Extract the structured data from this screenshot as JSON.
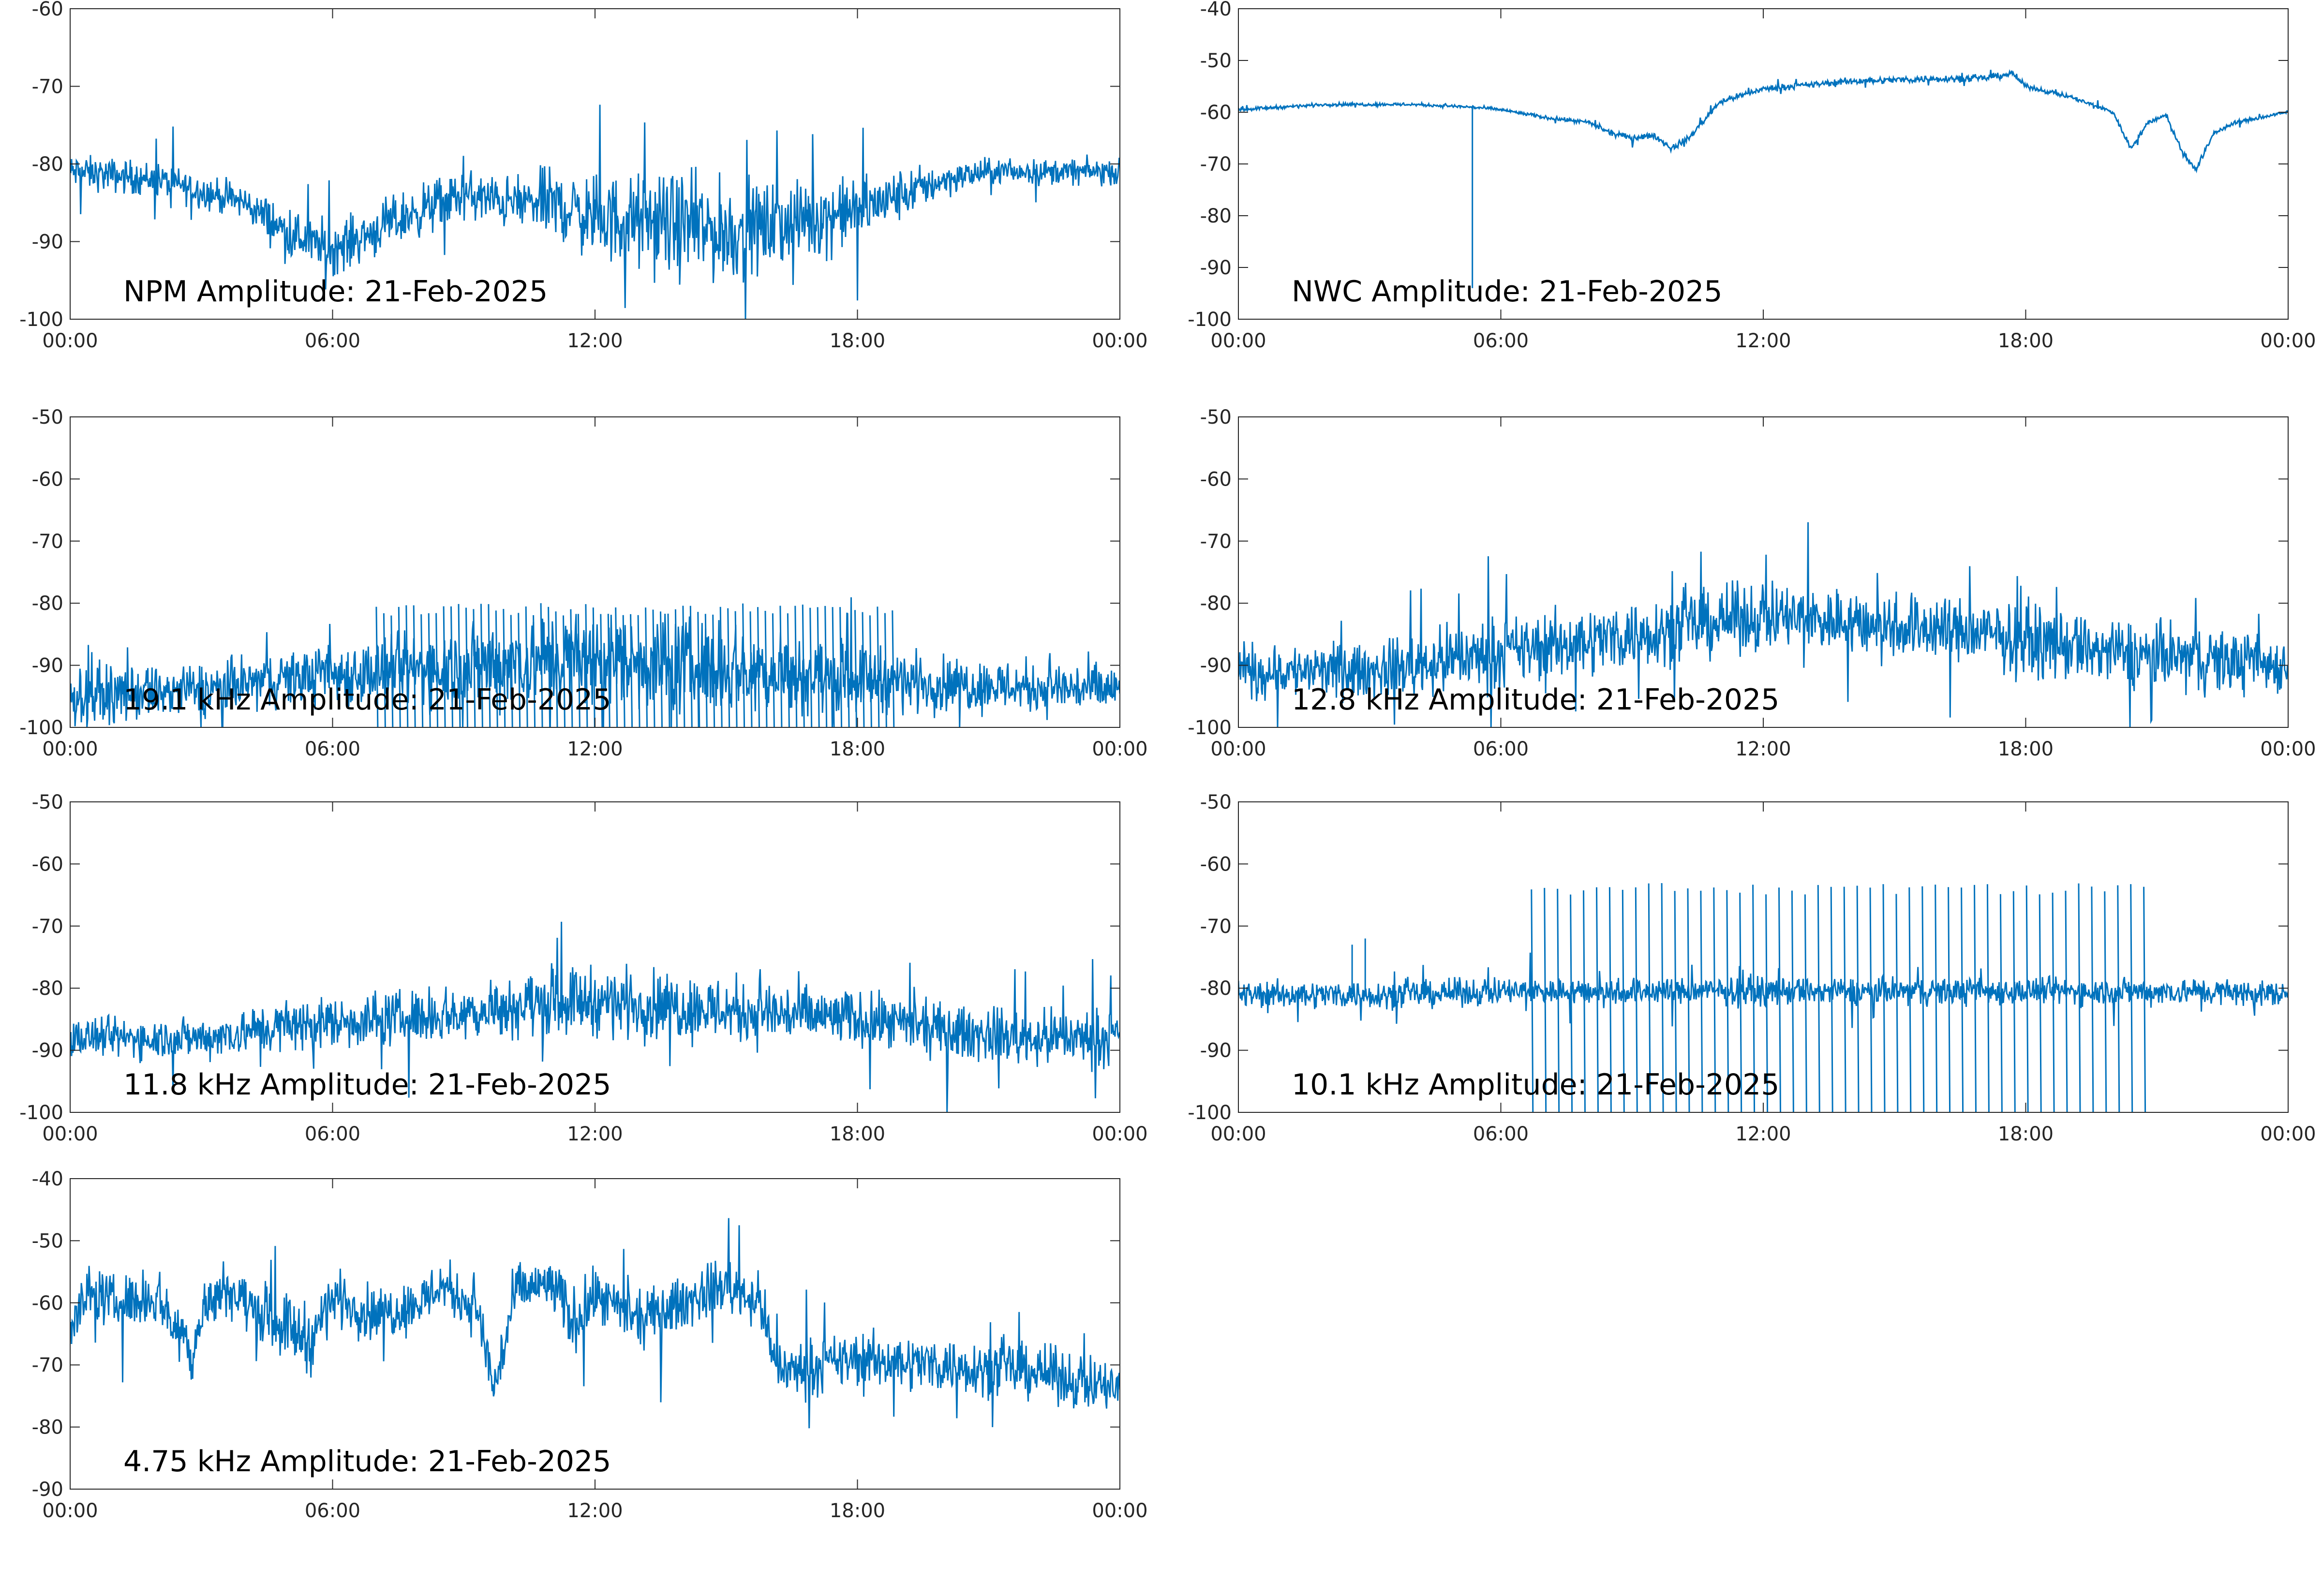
{
  "figure": {
    "background": "#ffffff",
    "line_color": "#0072BD",
    "axis_color": "#262626"
  },
  "chart_data": [
    {
      "type": "line",
      "title": "NPM Amplitude: 21-Feb-2025",
      "x_tick_labels": [
        "00:00",
        "06:00",
        "12:00",
        "18:00",
        "00:00"
      ],
      "ylim": [
        -100,
        -60
      ],
      "y_ticks": [
        -100,
        -90,
        -80,
        -70,
        -60
      ],
      "grid": false,
      "series": [
        {
          "x_hours": [
            0,
            2,
            4,
            5,
            6,
            8,
            9,
            10,
            11,
            12,
            14,
            15,
            16,
            18,
            19,
            20,
            21,
            24
          ],
          "y_mean": [
            -81,
            -82,
            -85,
            -89,
            -91,
            -86,
            -84,
            -85,
            -85,
            -87,
            -88,
            -89,
            -88,
            -86,
            -84,
            -82,
            -81,
            -81
          ],
          "y_spread": [
            2,
            2,
            2,
            3,
            3,
            3,
            3,
            3,
            4,
            5,
            6,
            6,
            5,
            4,
            3,
            2,
            1.5,
            1.5
          ]
        }
      ]
    },
    {
      "type": "line",
      "title": "NWC Amplitude: 21-Feb-2025",
      "x_tick_labels": [
        "00:00",
        "06:00",
        "12:00",
        "18:00",
        "00:00"
      ],
      "ylim": [
        -100,
        -40
      ],
      "y_ticks": [
        -100,
        -90,
        -80,
        -70,
        -60,
        -50,
        -40
      ],
      "grid": false,
      "series": [
        {
          "x_hours": [
            0,
            2,
            4,
            5.3,
            6,
            7,
            8,
            8.5,
            9,
            9.5,
            9.9,
            10.3,
            11,
            12,
            14,
            16,
            17,
            17.7,
            18,
            19,
            20,
            20.4,
            20.8,
            21.2,
            21.6,
            21.9,
            22.3,
            22.8,
            24
          ],
          "y_mean": [
            -59.5,
            -58.5,
            -58.5,
            -59,
            -59.5,
            -61,
            -62,
            -64,
            -65,
            -64.5,
            -67,
            -65,
            -58,
            -55.5,
            -54,
            -53.5,
            -53.5,
            -52.5,
            -55,
            -57,
            -60,
            -67,
            -62,
            -60.5,
            -68,
            -71,
            -64,
            -62,
            -60
          ],
          "y_spread": [
            0.3,
            0.3,
            0.3,
            0.3,
            0.3,
            0.3,
            0.4,
            0.5,
            0.5,
            0.5,
            0.6,
            0.5,
            0.5,
            0.5,
            0.6,
            0.6,
            0.6,
            0.6,
            0.4,
            0.4,
            0.4,
            0.6,
            0.4,
            0.4,
            0.6,
            0.6,
            0.4,
            0.4,
            0.3
          ],
          "spikes": [
            {
              "x_hours": 5.35,
              "y": -94
            }
          ]
        }
      ]
    },
    {
      "type": "line",
      "title": "19.1 kHz Amplitude: 21-Feb-2025",
      "x_tick_labels": [
        "00:00",
        "06:00",
        "12:00",
        "18:00",
        "00:00"
      ],
      "ylim": [
        -100,
        -50
      ],
      "y_ticks": [
        -100,
        -90,
        -80,
        -70,
        -60,
        -50
      ],
      "grid": false,
      "series": [
        {
          "x_hours": [
            0,
            3,
            5,
            7,
            9,
            11,
            12,
            14,
            16,
            18,
            20,
            24
          ],
          "y_mean": [
            -95,
            -94,
            -92,
            -91,
            -90,
            -89,
            -89,
            -90,
            -91,
            -92,
            -93,
            -94
          ],
          "y_spread": [
            4,
            4,
            4,
            5,
            6,
            7,
            7,
            7,
            6,
            5,
            4,
            4
          ],
          "bursts": {
            "x_start_hours": 7,
            "x_end_hours": 18.8,
            "count": 70,
            "y_top": -80,
            "y_bottom": -100
          }
        }
      ]
    },
    {
      "type": "line",
      "title": "12.8 kHz Amplitude: 21-Feb-2025",
      "x_tick_labels": [
        "00:00",
        "06:00",
        "12:00",
        "18:00",
        "00:00"
      ],
      "ylim": [
        -100,
        -50
      ],
      "y_ticks": [
        -100,
        -90,
        -80,
        -70,
        -60,
        -50
      ],
      "grid": false,
      "series": [
        {
          "x_hours": [
            0,
            3,
            5,
            7,
            9,
            11,
            12,
            14,
            16,
            18,
            20,
            22,
            24
          ],
          "y_mean": [
            -91,
            -91,
            -89,
            -87,
            -85,
            -83,
            -82,
            -83,
            -84,
            -86,
            -88,
            -89,
            -90
          ],
          "y_spread": [
            4,
            4,
            5,
            5,
            5,
            5,
            5,
            5,
            5,
            5,
            5,
            5,
            4
          ]
        }
      ]
    },
    {
      "type": "line",
      "title": "11.8 kHz Amplitude: 21-Feb-2025",
      "x_tick_labels": [
        "00:00",
        "06:00",
        "12:00",
        "18:00",
        "00:00"
      ],
      "ylim": [
        -100,
        -50
      ],
      "y_ticks": [
        -100,
        -90,
        -80,
        -70,
        -60,
        -50
      ],
      "grid": false,
      "series": [
        {
          "x_hours": [
            0,
            3,
            5,
            7,
            9,
            11,
            12,
            14,
            16,
            18,
            20,
            22,
            24
          ],
          "y_mean": [
            -88,
            -88,
            -86,
            -85,
            -84,
            -82,
            -82,
            -83,
            -84,
            -85,
            -87,
            -88,
            -88
          ],
          "y_spread": [
            3,
            3,
            4,
            4,
            4,
            5,
            5,
            5,
            5,
            4,
            4,
            4,
            4
          ]
        }
      ]
    },
    {
      "type": "line",
      "title": "10.1 kHz Amplitude: 21-Feb-2025",
      "x_tick_labels": [
        "00:00",
        "06:00",
        "12:00",
        "18:00",
        "00:00"
      ],
      "ylim": [
        -100,
        -50
      ],
      "y_ticks": [
        -100,
        -90,
        -80,
        -70,
        -60,
        -50
      ],
      "grid": false,
      "series": [
        {
          "x_hours": [
            0,
            2,
            4,
            6,
            6.7,
            12,
            18,
            20.7,
            22,
            24
          ],
          "y_mean": [
            -81,
            -81,
            -81,
            -80.5,
            -80.5,
            -80.5,
            -80.5,
            -80.5,
            -80.5,
            -81
          ],
          "y_spread": [
            2,
            2,
            2,
            2,
            2,
            2,
            2,
            2,
            2,
            2
          ],
          "bursts": {
            "x_start_hours": 6.7,
            "x_end_hours": 20.7,
            "count": 48,
            "y_top": -63,
            "y_bottom": -100
          },
          "spikes": [
            {
              "x_hours": 2.9,
              "y": -72
            },
            {
              "x_hours": 2.6,
              "y": -73
            }
          ]
        }
      ]
    },
    {
      "type": "line",
      "title": "4.75 kHz Amplitude: 21-Feb-2025",
      "x_tick_labels": [
        "00:00",
        "06:00",
        "12:00",
        "18:00",
        "00:00"
      ],
      "ylim": [
        -90,
        -40
      ],
      "y_ticks": [
        -90,
        -80,
        -70,
        -60,
        -50,
        -40
      ],
      "grid": false,
      "series": [
        {
          "x_hours": [
            0,
            0.5,
            1,
            2,
            2.8,
            3,
            3.5,
            4,
            5,
            5.5,
            6,
            7,
            8,
            8.5,
            9.3,
            9.7,
            10.2,
            11,
            11.5,
            12,
            13,
            14,
            15,
            15.8,
            16.1,
            16.5,
            18,
            20,
            22,
            24
          ],
          "y_mean": [
            -63,
            -58,
            -60,
            -59,
            -68,
            -62,
            -57,
            -60,
            -64,
            -66,
            -59,
            -62,
            -60,
            -57,
            -61,
            -74,
            -58,
            -57,
            -63,
            -59,
            -63,
            -60,
            -57,
            -60,
            -70,
            -71,
            -69,
            -70,
            -71,
            -74
          ],
          "y_spread": [
            4,
            4,
            4,
            4,
            5,
            4,
            4,
            4,
            5,
            5,
            4,
            4,
            4,
            4,
            4,
            5,
            4,
            4,
            5,
            4,
            4,
            4,
            4,
            4,
            4,
            4,
            4,
            4,
            4,
            4
          ]
        }
      ]
    }
  ]
}
